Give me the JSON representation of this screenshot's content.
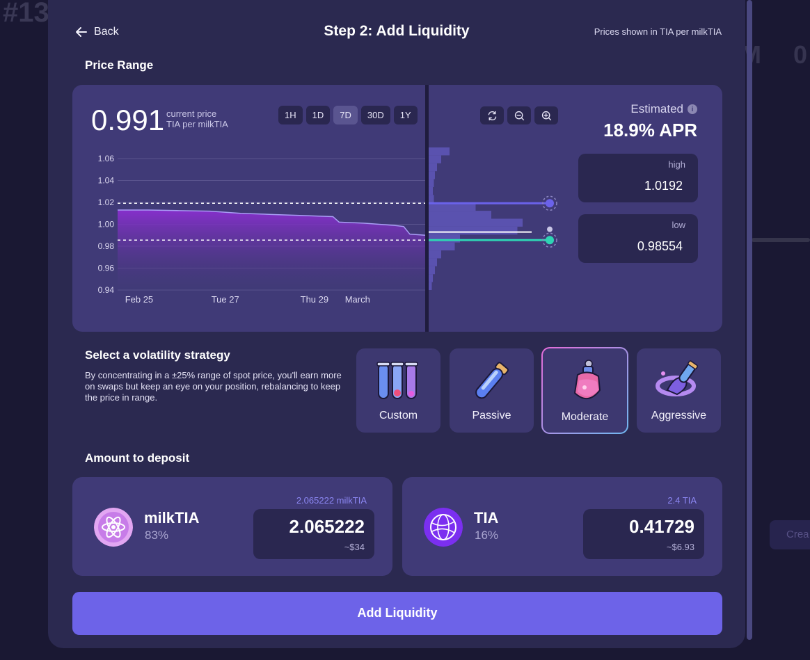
{
  "background": {
    "partial_number": "#13",
    "partial_letter_m": "M",
    "partial_letter_o": "0",
    "partial_button": "Crea"
  },
  "header": {
    "back_label": "Back",
    "title": "Step 2: Add Liquidity",
    "prices_note": "Prices shown in TIA per milkTIA"
  },
  "price_range": {
    "section_label": "Price Range",
    "current_price": "0.991",
    "current_price_label": "current price",
    "unit_label": "TIA per milkTIA",
    "timeframes": [
      "1H",
      "1D",
      "7D",
      "30D",
      "1Y"
    ],
    "active_timeframe": "7D",
    "zoom_controls": [
      "refresh-icon",
      "zoom-out-icon",
      "zoom-in-icon"
    ],
    "estimated_label": "Estimated",
    "apr": "18.9% APR",
    "high_label": "high",
    "high_value": "1.0192",
    "low_label": "low",
    "low_value": "0.98554"
  },
  "chart_data": {
    "type": "area",
    "x_tick_labels": [
      "Feb 25",
      "Tue 27",
      "Thu 29",
      "March"
    ],
    "y_tick_labels": [
      "1.06",
      "1.04",
      "1.02",
      "1.00",
      "0.98",
      "0.96",
      "0.94"
    ],
    "ylim": [
      0.94,
      1.06
    ],
    "grid": true,
    "range_high": 1.0192,
    "range_low": 0.98554,
    "current": 0.991,
    "series": [
      {
        "x": [
          0,
          0.1,
          0.2,
          0.3,
          0.4,
          0.5,
          0.6,
          0.7,
          0.72,
          0.8,
          0.9,
          0.93,
          0.95,
          1.0
        ],
        "values": [
          1.013,
          1.013,
          1.0125,
          1.012,
          1.01,
          1.009,
          1.008,
          1.007,
          1.002,
          1.001,
          0.999,
          0.998,
          0.991,
          0.99
        ]
      }
    ],
    "liquidity_depth": [
      0.2,
      0.12,
      0.08,
      0.06,
      0.05,
      0.04,
      0.05,
      0.45,
      0.6,
      0.9,
      0.85,
      0.3,
      0.25,
      0.12,
      0.08,
      0.06,
      0.04,
      0.03
    ]
  },
  "strategy": {
    "section_label": "Select a volatility strategy",
    "description": "By concentrating in a ±25% range of spot price, you'll earn more on swaps but keep an eye on your position, rebalancing to keep the price in range.",
    "options": [
      "Custom",
      "Passive",
      "Moderate",
      "Aggressive"
    ],
    "selected": "Moderate"
  },
  "deposit": {
    "section_label": "Amount to deposit",
    "tokens": [
      {
        "name": "milkTIA",
        "percent": "83%",
        "balance": "2.065222 milkTIA",
        "amount": "2.065222",
        "usd": "~$34",
        "icon": "milktia-atom-icon",
        "color": "#d7a0f0"
      },
      {
        "name": "TIA",
        "percent": "16%",
        "balance": "2.4 TIA",
        "amount": "0.41729",
        "usd": "~$6.93",
        "icon": "tia-globe-icon",
        "color": "#7b2ff0"
      }
    ]
  },
  "submit_label": "Add Liquidity",
  "colors": {
    "accent": "#6d63e8",
    "range_high_line": "#6b62ea",
    "range_low_line": "#2fd3b4",
    "chart_fill": "#8a2fd0"
  }
}
